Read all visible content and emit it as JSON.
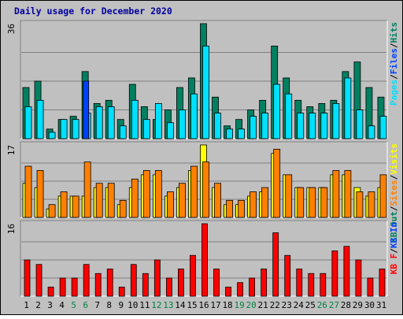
{
  "chart_data": {
    "type": "bar",
    "title": "Daily usage for December 2020",
    "categories": [
      "1",
      "2",
      "3",
      "4",
      "5",
      "6",
      "7",
      "8",
      "9",
      "10",
      "11",
      "12",
      "13",
      "14",
      "15",
      "16",
      "17",
      "18",
      "19",
      "20",
      "21",
      "22",
      "23",
      "24",
      "25",
      "26",
      "27",
      "28",
      "29",
      "30",
      "31"
    ],
    "weekend_categories": [
      "5",
      "6",
      "12",
      "13",
      "19",
      "20",
      "26",
      "27"
    ],
    "panels": [
      {
        "id": "top",
        "ymax": 36,
        "ymax_label": "36",
        "legend": [
          "Pages",
          "Files",
          "Hits"
        ],
        "series": [
          {
            "name": "Hits",
            "color": "#008060",
            "values": [
              16,
              18,
              3,
              6,
              7,
              21,
              11,
              12,
              6,
              17,
              10,
              6,
              9,
              16,
              19,
              36,
              13,
              4,
              6,
              9,
              12,
              29,
              19,
              12,
              10,
              11,
              12,
              21,
              24,
              16,
              13
            ]
          },
          {
            "name": "Files",
            "color": "#00e0ff",
            "values": [
              10,
              12,
              2,
              6,
              6,
              8,
              10,
              10,
              4,
              12,
              6,
              11,
              5,
              9,
              14,
              29,
              8,
              3,
              3,
              7,
              8,
              17,
              14,
              8,
              8,
              8,
              11,
              19,
              9,
              4,
              7
            ]
          },
          {
            "name": "Pages",
            "color": "#0040ff",
            "values": [
              0,
              0,
              0,
              0,
              0,
              18,
              0,
              0,
              0,
              0,
              0,
              0,
              0,
              0,
              0,
              0,
              0,
              0,
              0,
              0,
              0,
              0,
              0,
              0,
              0,
              0,
              0,
              0,
              0,
              0,
              0
            ]
          }
        ]
      },
      {
        "id": "middle",
        "ymax": 17,
        "ymax_label": "17",
        "legend": [
          "Visits",
          "Sites",
          "KB Out"
        ],
        "series": [
          {
            "name": "Visits",
            "color": "#ffff00",
            "values": [
              8,
              7,
              2,
              5,
              5,
              5,
              7,
              7,
              3,
              7,
              10,
              10,
              5,
              7,
              11,
              17,
              7,
              3,
              3,
              5,
              6,
              15,
              10,
              7,
              7,
              7,
              10,
              10,
              7,
              5,
              7
            ]
          },
          {
            "name": "Sites",
            "color": "#ff8000",
            "values": [
              12,
              11,
              3,
              6,
              5,
              13,
              8,
              8,
              4,
              9,
              11,
              11,
              6,
              8,
              12,
              13,
              8,
              4,
              4,
              6,
              7,
              16,
              10,
              7,
              7,
              7,
              11,
              11,
              6,
              6,
              10
            ]
          }
        ]
      },
      {
        "id": "bottom",
        "ymax": 16,
        "ymax_label": "16",
        "legend": [
          "KB F",
          "KB In"
        ],
        "series": [
          {
            "name": "KB F",
            "color": "#ff0000",
            "values": [
              8,
              7,
              2,
              4,
              4,
              7,
              5,
              6,
              2,
              7,
              5,
              8,
              4,
              6,
              9,
              16,
              6,
              2,
              3,
              4,
              6,
              14,
              9,
              6,
              5,
              5,
              10,
              11,
              8,
              4,
              6
            ]
          }
        ]
      }
    ]
  }
}
